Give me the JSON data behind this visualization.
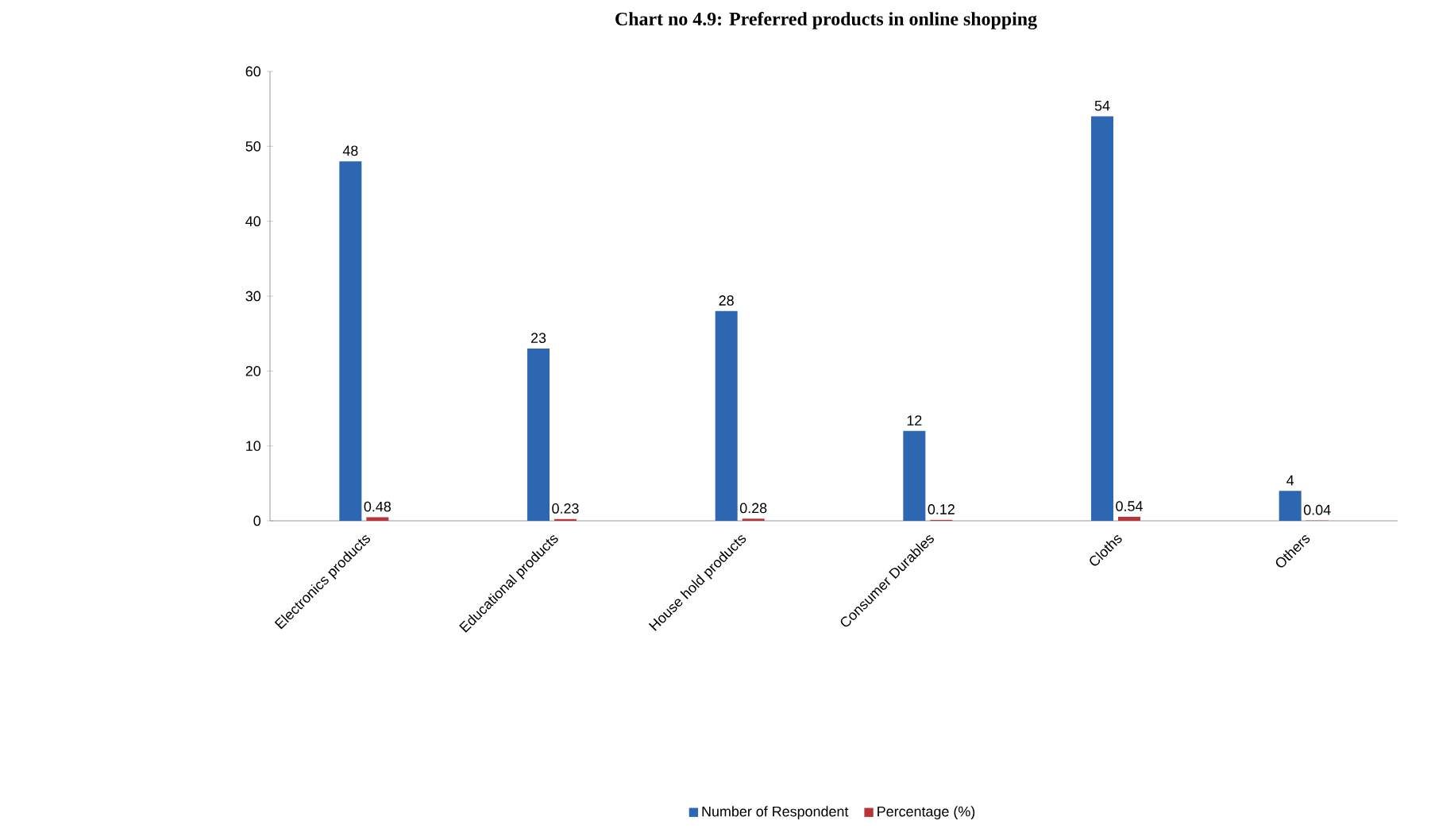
{
  "chart_data": {
    "type": "bar",
    "title": "Chart no 4.9: Preferred products in online shopping",
    "categories": [
      "Electronics products",
      "Educational products",
      "House hold products",
      "Consumer Durables",
      "Cloths",
      "Others"
    ],
    "series": [
      {
        "name": "Number of Respondent",
        "color": "#2e67b1",
        "values": [
          48,
          23,
          28,
          12,
          54,
          4
        ]
      },
      {
        "name": "Percentage (%)",
        "color": "#b8333a",
        "values": [
          0.48,
          0.23,
          0.28,
          0.12,
          0.54,
          0.04
        ]
      }
    ],
    "ylim": [
      0,
      60
    ],
    "yticks": [
      0,
      10,
      20,
      30,
      40,
      50,
      60
    ],
    "data_labels": true,
    "legend": "bottom",
    "grid": false
  }
}
